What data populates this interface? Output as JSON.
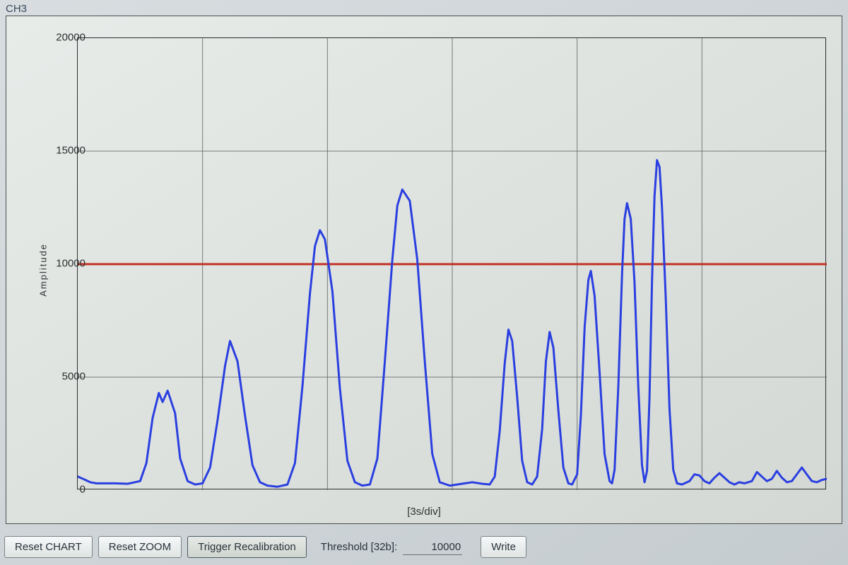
{
  "channel": {
    "label": "CH3"
  },
  "chart": {
    "type": "line",
    "y_axis_title": "Amplitude",
    "x_axis_title": "[3s/div]",
    "ylim": [
      0,
      20000
    ],
    "y_ticks": [
      0,
      5000,
      10000,
      15000,
      20000
    ],
    "y_tick_labels": [
      "0",
      "5000",
      "10000",
      "15000",
      "20000"
    ],
    "x_divisions": 6,
    "background_gradient_from": "#e8ece9",
    "background_gradient_to": "#d4d8d4",
    "grid_color": "#5a5f60",
    "grid_width": 1,
    "axis_color": "#2b2e30",
    "threshold_line": {
      "value": 10000,
      "color": "#c43022",
      "width": 3
    },
    "series": {
      "color": "#2a3fe0",
      "width": 3,
      "points": [
        [
          0.0,
          600
        ],
        [
          0.05,
          480
        ],
        [
          0.1,
          350
        ],
        [
          0.15,
          300
        ],
        [
          0.2,
          300
        ],
        [
          0.3,
          300
        ],
        [
          0.4,
          280
        ],
        [
          0.5,
          400
        ],
        [
          0.55,
          1200
        ],
        [
          0.6,
          3200
        ],
        [
          0.65,
          4300
        ],
        [
          0.68,
          3900
        ],
        [
          0.72,
          4400
        ],
        [
          0.78,
          3400
        ],
        [
          0.82,
          1400
        ],
        [
          0.88,
          400
        ],
        [
          0.94,
          250
        ],
        [
          1.0,
          300
        ],
        [
          1.06,
          1000
        ],
        [
          1.12,
          3100
        ],
        [
          1.18,
          5500
        ],
        [
          1.22,
          6600
        ],
        [
          1.28,
          5700
        ],
        [
          1.34,
          3300
        ],
        [
          1.4,
          1100
        ],
        [
          1.46,
          350
        ],
        [
          1.52,
          200
        ],
        [
          1.6,
          150
        ],
        [
          1.68,
          250
        ],
        [
          1.74,
          1200
        ],
        [
          1.8,
          4600
        ],
        [
          1.86,
          8700
        ],
        [
          1.9,
          10800
        ],
        [
          1.94,
          11500
        ],
        [
          1.98,
          11100
        ],
        [
          2.04,
          8800
        ],
        [
          2.1,
          4500
        ],
        [
          2.16,
          1300
        ],
        [
          2.22,
          350
        ],
        [
          2.28,
          200
        ],
        [
          2.34,
          250
        ],
        [
          2.4,
          1400
        ],
        [
          2.46,
          5700
        ],
        [
          2.52,
          10200
        ],
        [
          2.56,
          12600
        ],
        [
          2.6,
          13300
        ],
        [
          2.66,
          12800
        ],
        [
          2.72,
          10200
        ],
        [
          2.78,
          5700
        ],
        [
          2.84,
          1600
        ],
        [
          2.9,
          350
        ],
        [
          2.98,
          200
        ],
        [
          3.04,
          250
        ],
        [
          3.1,
          300
        ],
        [
          3.16,
          350
        ],
        [
          3.24,
          280
        ],
        [
          3.3,
          250
        ],
        [
          3.34,
          600
        ],
        [
          3.38,
          2600
        ],
        [
          3.42,
          5600
        ],
        [
          3.45,
          7100
        ],
        [
          3.48,
          6600
        ],
        [
          3.52,
          4100
        ],
        [
          3.56,
          1300
        ],
        [
          3.6,
          350
        ],
        [
          3.64,
          250
        ],
        [
          3.68,
          600
        ],
        [
          3.72,
          2700
        ],
        [
          3.75,
          5700
        ],
        [
          3.78,
          7000
        ],
        [
          3.81,
          6300
        ],
        [
          3.85,
          3500
        ],
        [
          3.89,
          1000
        ],
        [
          3.93,
          300
        ],
        [
          3.96,
          250
        ],
        [
          4.0,
          700
        ],
        [
          4.03,
          3300
        ],
        [
          4.06,
          7200
        ],
        [
          4.09,
          9300
        ],
        [
          4.11,
          9700
        ],
        [
          4.14,
          8600
        ],
        [
          4.18,
          5200
        ],
        [
          4.22,
          1600
        ],
        [
          4.26,
          400
        ],
        [
          4.28,
          300
        ],
        [
          4.3,
          900
        ],
        [
          4.33,
          4600
        ],
        [
          4.36,
          9600
        ],
        [
          4.38,
          12000
        ],
        [
          4.4,
          12700
        ],
        [
          4.43,
          12000
        ],
        [
          4.46,
          9200
        ],
        [
          4.49,
          4600
        ],
        [
          4.52,
          1100
        ],
        [
          4.54,
          350
        ],
        [
          4.56,
          850
        ],
        [
          4.58,
          4100
        ],
        [
          4.6,
          9300
        ],
        [
          4.62,
          13000
        ],
        [
          4.64,
          14600
        ],
        [
          4.66,
          14300
        ],
        [
          4.68,
          12500
        ],
        [
          4.71,
          8500
        ],
        [
          4.74,
          3600
        ],
        [
          4.77,
          900
        ],
        [
          4.8,
          300
        ],
        [
          4.84,
          250
        ],
        [
          4.9,
          400
        ],
        [
          4.94,
          700
        ],
        [
          4.98,
          650
        ],
        [
          5.02,
          400
        ],
        [
          5.06,
          300
        ],
        [
          5.1,
          550
        ],
        [
          5.14,
          750
        ],
        [
          5.18,
          550
        ],
        [
          5.22,
          350
        ],
        [
          5.26,
          250
        ],
        [
          5.3,
          350
        ],
        [
          5.34,
          300
        ],
        [
          5.4,
          400
        ],
        [
          5.44,
          800
        ],
        [
          5.48,
          600
        ],
        [
          5.52,
          400
        ],
        [
          5.56,
          500
        ],
        [
          5.6,
          850
        ],
        [
          5.64,
          550
        ],
        [
          5.68,
          350
        ],
        [
          5.72,
          400
        ],
        [
          5.76,
          700
        ],
        [
          5.8,
          1000
        ],
        [
          5.84,
          700
        ],
        [
          5.88,
          400
        ],
        [
          5.92,
          350
        ],
        [
          5.96,
          450
        ],
        [
          6.0,
          500
        ]
      ]
    }
  },
  "toolbar": {
    "reset_chart_label": "Reset CHART",
    "reset_zoom_label": "Reset ZOOM",
    "trigger_recal_label": "Trigger Recalibration",
    "threshold_label": "Threshold [32b]:",
    "threshold_value": "10000",
    "write_label": "Write"
  }
}
